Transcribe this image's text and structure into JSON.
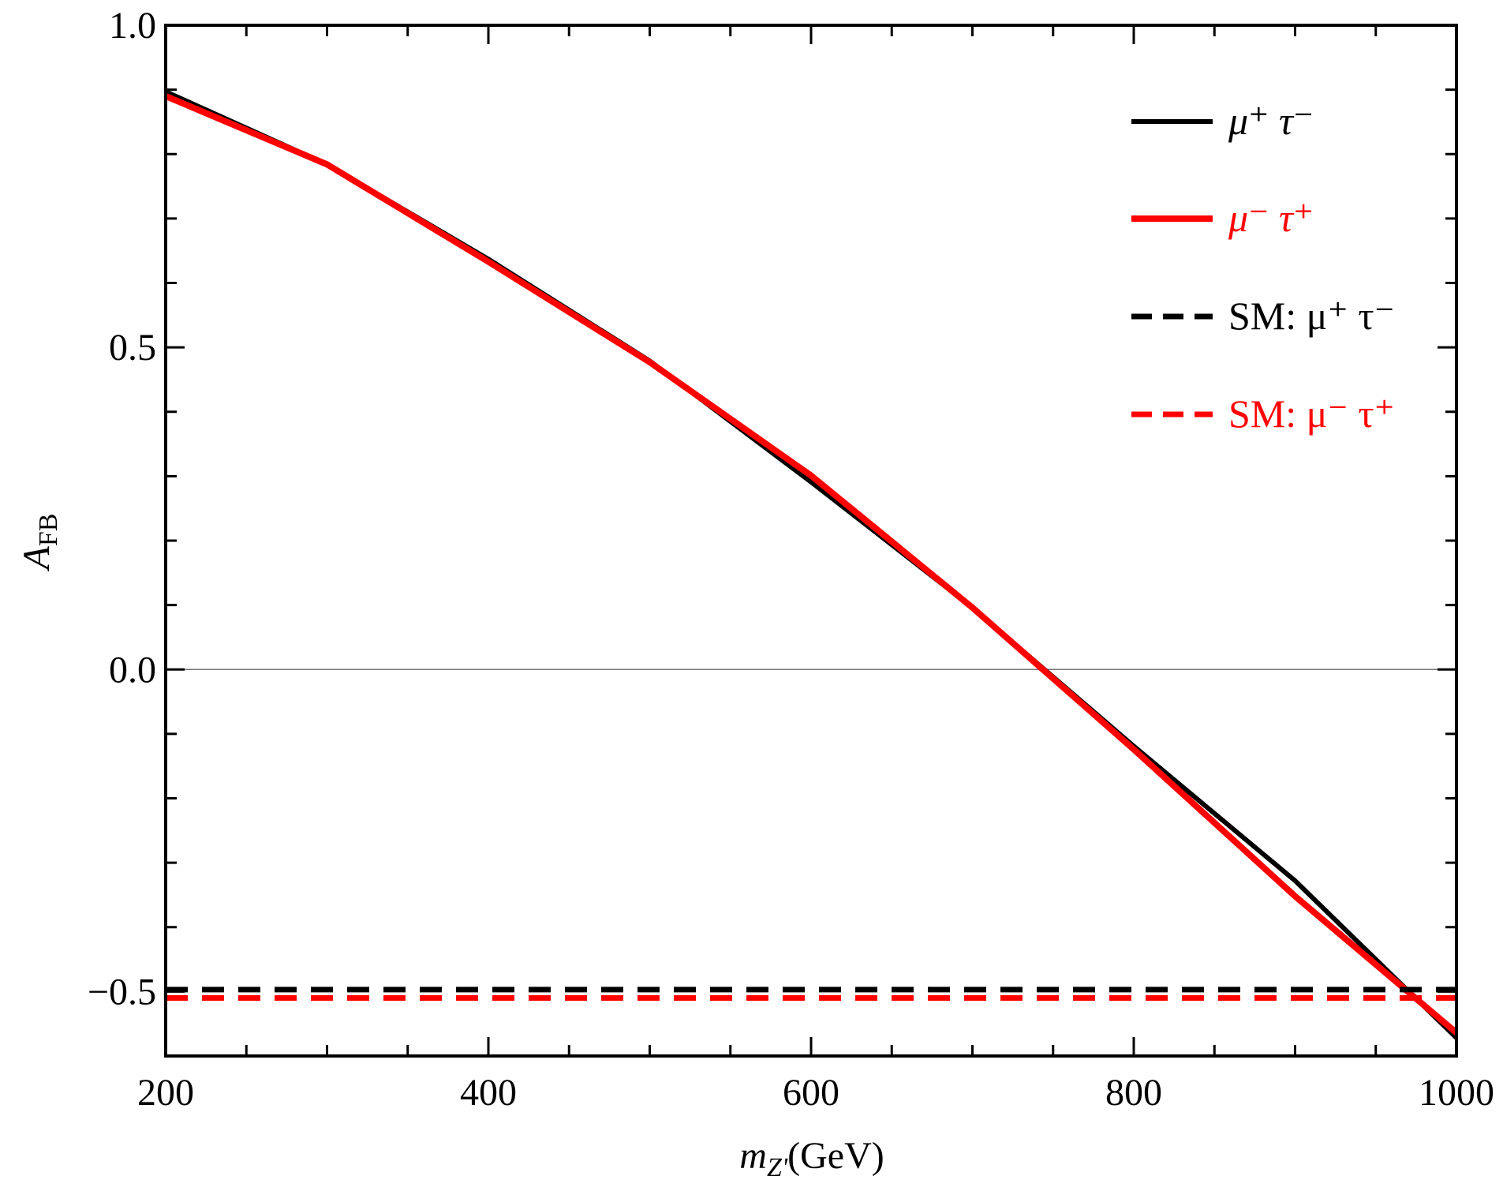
{
  "chart_data": {
    "type": "line",
    "title": "",
    "xlabel": {
      "main": "m",
      "sub": "Z'",
      "unit": "(GeV)"
    },
    "ylabel": {
      "main": "A",
      "sub": "FB"
    },
    "xlim": [
      200,
      1000
    ],
    "ylim": [
      -0.6,
      1.0
    ],
    "x_ticks": [
      200,
      400,
      600,
      800,
      1000
    ],
    "x_tick_labels": [
      "200",
      "400",
      "600",
      "800",
      "1000"
    ],
    "y_ticks": [
      -0.5,
      0.0,
      0.5,
      1.0
    ],
    "y_tick_labels": [
      "−0.5",
      "0.0",
      "0.5",
      "1.0"
    ],
    "x_minor_step": 50,
    "y_minor_step": 0.1,
    "grid": false,
    "zero_line": true,
    "legend_placement": "top-right",
    "series": [
      {
        "name": "μ⁺ τ⁻",
        "color": "#000000",
        "style": "solid",
        "x": [
          200,
          300,
          400,
          500,
          600,
          700,
          800,
          900,
          1000
        ],
        "y": [
          0.897,
          0.784,
          0.637,
          0.479,
          0.291,
          0.096,
          -0.119,
          -0.328,
          -0.572
        ]
      },
      {
        "name": "μ⁻ τ⁺",
        "color": "#ff0000",
        "style": "solid",
        "x": [
          200,
          300,
          400,
          500,
          600,
          700,
          800,
          900,
          1000
        ],
        "y": [
          0.89,
          0.784,
          0.633,
          0.477,
          0.301,
          0.096,
          -0.124,
          -0.352,
          -0.564
        ]
      },
      {
        "name": "SM: μ⁺ τ⁻",
        "color": "#000000",
        "style": "dashed",
        "x": [
          200,
          1000
        ],
        "y": [
          -0.497,
          -0.497
        ]
      },
      {
        "name": "SM: μ⁻ τ⁺",
        "color": "#ff0000",
        "style": "dashed",
        "x": [
          200,
          1000
        ],
        "y": [
          -0.51,
          -0.51
        ]
      }
    ]
  }
}
